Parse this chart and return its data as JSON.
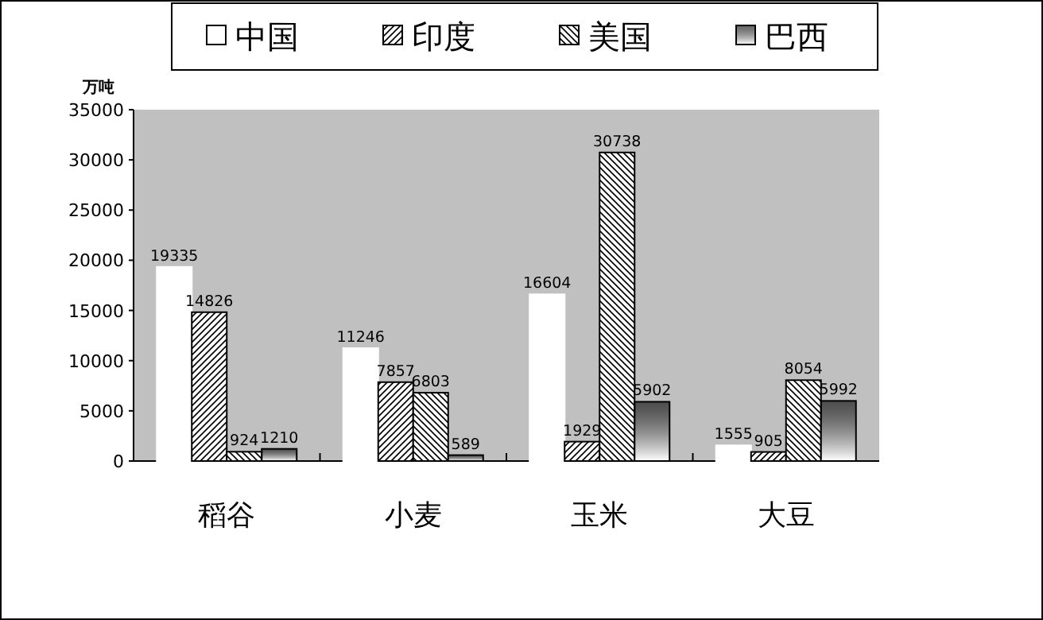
{
  "chart_data": {
    "type": "bar",
    "ylabel": "万吨",
    "categories": [
      "稻谷",
      "小麦",
      "玉米",
      "大豆"
    ],
    "series": [
      {
        "name": "中国",
        "color": "#ffffff",
        "values": [
          19335,
          11246,
          16604,
          1555
        ]
      },
      {
        "name": "印度",
        "color": "#000000",
        "values": [
          14826,
          7857,
          1929,
          905
        ]
      },
      {
        "name": "美国",
        "color": "#000000",
        "values": [
          924,
          6803,
          30738,
          8054
        ]
      },
      {
        "name": "巴西",
        "color": "#000000",
        "values": [
          1210,
          589,
          5902,
          5992
        ]
      }
    ],
    "ylim": [
      0,
      35000
    ],
    "yticks": [
      0,
      5000,
      10000,
      15000,
      20000,
      25000,
      30000,
      35000
    ],
    "data_labels": true,
    "legend": "top",
    "grid": false
  }
}
